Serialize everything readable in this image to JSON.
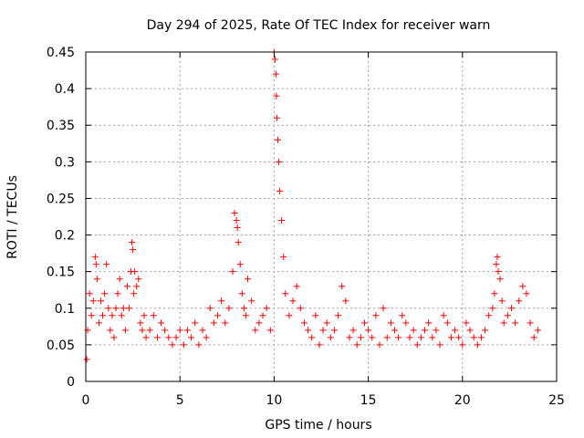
{
  "chart_data": {
    "type": "scatter",
    "title": "Day 294 of 2025, Rate Of TEC Index for receiver warn",
    "xlabel": "GPS time / hours",
    "ylabel": "ROTI / TECUs",
    "xlim": [
      0,
      25
    ],
    "ylim": [
      0,
      0.45
    ],
    "grid": true,
    "marker": "plus",
    "color": "#ff0000",
    "x_ticks": [
      0,
      5,
      10,
      15,
      20,
      25
    ],
    "x_tick_labels": [
      "0",
      "5",
      "10",
      "15",
      "20",
      "25"
    ],
    "y_ticks": [
      0,
      0.05,
      0.1,
      0.15,
      0.2,
      0.25,
      0.3,
      0.35,
      0.4,
      0.45
    ],
    "y_tick_labels": [
      "0",
      "0.05",
      "0.1",
      "0.15",
      "0.2",
      "0.25",
      "0.3",
      "0.35",
      "0.4",
      "0.45"
    ],
    "series": [
      {
        "name": "ROTI",
        "note": "Dense cloud of points mostly below 0.1 TECU/min from 0 to 24 h, with spikes near 0.5 h, 2.5 h, 8 h, 10.1 h and 22 h",
        "x": [
          0.05,
          0.1,
          0.2,
          0.3,
          0.4,
          0.5,
          0.55,
          0.6,
          0.7,
          0.8,
          0.9,
          1.0,
          1.1,
          1.2,
          1.3,
          1.4,
          1.5,
          1.6,
          1.7,
          1.8,
          1.9,
          2.0,
          2.1,
          2.2,
          2.3,
          2.4,
          2.45,
          2.5,
          2.55,
          2.6,
          2.7,
          2.8,
          2.9,
          3.0,
          3.1,
          3.2,
          3.4,
          3.6,
          3.8,
          4.0,
          4.2,
          4.4,
          4.6,
          4.8,
          5.0,
          5.2,
          5.4,
          5.6,
          5.8,
          6.0,
          6.2,
          6.4,
          6.6,
          6.8,
          7.0,
          7.2,
          7.4,
          7.6,
          7.8,
          7.9,
          8.0,
          8.05,
          8.1,
          8.2,
          8.3,
          8.4,
          8.5,
          8.6,
          8.8,
          9.0,
          9.2,
          9.4,
          9.6,
          9.8,
          10.0,
          10.05,
          10.1,
          10.12,
          10.15,
          10.2,
          10.25,
          10.3,
          10.4,
          10.5,
          10.6,
          10.8,
          11.0,
          11.2,
          11.4,
          11.6,
          11.8,
          12.0,
          12.2,
          12.4,
          12.6,
          12.8,
          13.0,
          13.2,
          13.4,
          13.6,
          13.8,
          14.0,
          14.2,
          14.4,
          14.6,
          14.8,
          15.0,
          15.2,
          15.4,
          15.6,
          15.8,
          16.0,
          16.2,
          16.4,
          16.6,
          16.8,
          17.0,
          17.2,
          17.4,
          17.6,
          17.8,
          18.0,
          18.2,
          18.4,
          18.6,
          18.8,
          19.0,
          19.2,
          19.4,
          19.6,
          19.8,
          20.0,
          20.2,
          20.4,
          20.6,
          20.8,
          21.0,
          21.2,
          21.4,
          21.6,
          21.7,
          21.8,
          21.85,
          21.9,
          22.0,
          22.1,
          22.2,
          22.4,
          22.6,
          22.8,
          23.0,
          23.2,
          23.4,
          23.6,
          23.8,
          24.0
        ],
        "y": [
          0.03,
          0.07,
          0.12,
          0.09,
          0.11,
          0.17,
          0.16,
          0.14,
          0.08,
          0.11,
          0.09,
          0.12,
          0.16,
          0.1,
          0.07,
          0.09,
          0.06,
          0.1,
          0.12,
          0.14,
          0.09,
          0.1,
          0.07,
          0.13,
          0.1,
          0.15,
          0.19,
          0.18,
          0.12,
          0.15,
          0.13,
          0.14,
          0.08,
          0.07,
          0.09,
          0.06,
          0.07,
          0.09,
          0.06,
          0.08,
          0.07,
          0.06,
          0.05,
          0.06,
          0.07,
          0.05,
          0.07,
          0.06,
          0.08,
          0.05,
          0.07,
          0.06,
          0.1,
          0.08,
          0.09,
          0.11,
          0.08,
          0.1,
          0.15,
          0.23,
          0.22,
          0.21,
          0.19,
          0.16,
          0.12,
          0.1,
          0.09,
          0.14,
          0.11,
          0.07,
          0.08,
          0.09,
          0.1,
          0.07,
          0.45,
          0.44,
          0.42,
          0.39,
          0.36,
          0.33,
          0.3,
          0.26,
          0.22,
          0.17,
          0.12,
          0.09,
          0.11,
          0.13,
          0.1,
          0.08,
          0.07,
          0.06,
          0.09,
          0.05,
          0.07,
          0.08,
          0.06,
          0.07,
          0.09,
          0.13,
          0.11,
          0.06,
          0.07,
          0.05,
          0.06,
          0.08,
          0.07,
          0.06,
          0.09,
          0.05,
          0.1,
          0.06,
          0.08,
          0.07,
          0.06,
          0.09,
          0.08,
          0.06,
          0.07,
          0.05,
          0.06,
          0.07,
          0.08,
          0.06,
          0.07,
          0.05,
          0.09,
          0.08,
          0.06,
          0.07,
          0.06,
          0.05,
          0.08,
          0.07,
          0.06,
          0.05,
          0.06,
          0.07,
          0.09,
          0.1,
          0.12,
          0.16,
          0.17,
          0.15,
          0.14,
          0.11,
          0.08,
          0.09,
          0.1,
          0.08,
          0.11,
          0.13,
          0.12,
          0.08,
          0.06,
          0.07
        ]
      }
    ]
  }
}
